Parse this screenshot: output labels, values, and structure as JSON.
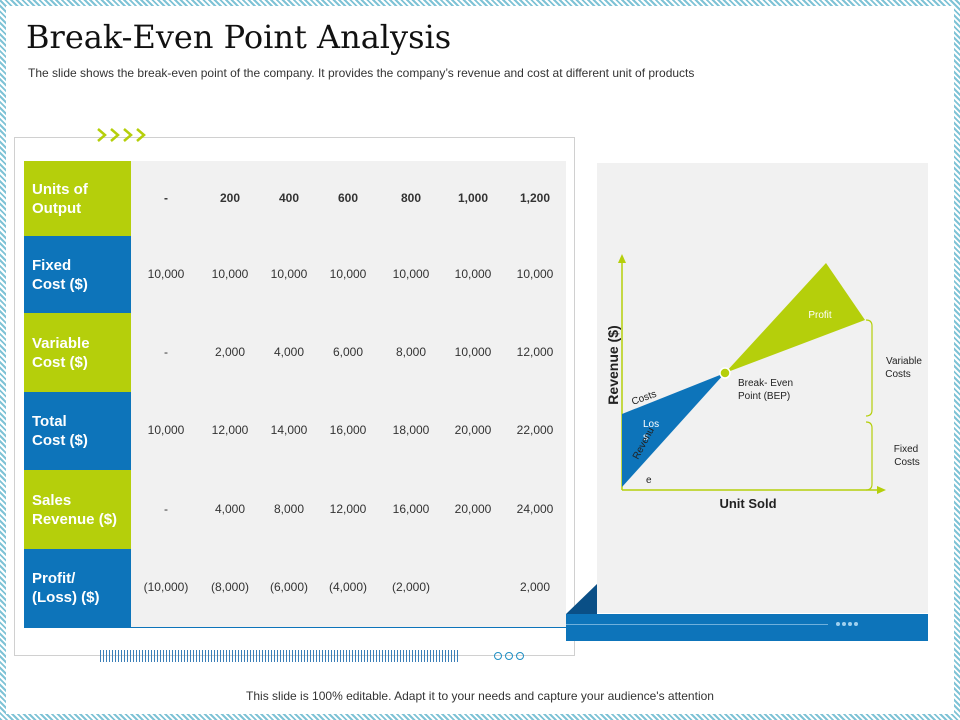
{
  "title": "Break-Even Point Analysis",
  "subtitle": "The slide shows the break-even  point of the company. It provides  the company’s revenue  and cost at different  unit of products",
  "footer": "This slide is 100% editable. Adapt it to your needs and capture your audience's attention",
  "colors": {
    "green": "#b5cf0b",
    "blue": "#0d74ba",
    "panel": "#f1f1f1"
  },
  "icons": {
    "chevrons": "chevron-right-icon",
    "circles": "circle-outline-icon"
  },
  "table": {
    "rows": [
      {
        "label_line1": "Units of",
        "label_line2": "Output",
        "color": "green",
        "bold": true,
        "values": [
          "-",
          "200",
          "400",
          "600",
          "800",
          "1,000",
          "1,200"
        ]
      },
      {
        "label_line1": "Fixed",
        "label_line2": "Cost ($)",
        "color": "blue",
        "bold": false,
        "values": [
          "10,000",
          "10,000",
          "10,000",
          "10,000",
          "10,000",
          "10,000",
          "10,000"
        ]
      },
      {
        "label_line1": "Variable",
        "label_line2": "Cost ($)",
        "color": "green",
        "bold": false,
        "values": [
          "-",
          "2,000",
          "4,000",
          "6,000",
          "8,000",
          "10,000",
          "12,000"
        ]
      },
      {
        "label_line1": "Total",
        "label_line2": "Cost ($)",
        "color": "blue",
        "bold": false,
        "values": [
          "10,000",
          "12,000",
          "14,000",
          "16,000",
          "18,000",
          "20,000",
          "22,000"
        ]
      },
      {
        "label_line1": "Sales",
        "label_line2": "Revenue ($)",
        "color": "green",
        "bold": false,
        "values": [
          "-",
          "4,000",
          "8,000",
          "12,000",
          "16,000",
          "20,000",
          "24,000"
        ]
      },
      {
        "label_line1": "Profit/",
        "label_line2": "(Loss) ($)",
        "color": "blue",
        "bold": false,
        "values": [
          "(10,000)",
          "(8,000)",
          "(6,000)",
          "(4,000)",
          "(2,000)",
          "",
          "2,000"
        ]
      }
    ]
  },
  "diagram": {
    "y_axis_label": "Revenue ($)",
    "x_axis_label": "Unit Sold",
    "profit_label": "Profit",
    "loss_label_line1": "Los",
    "loss_label_line2": "s",
    "costs_label": "Costs",
    "revenue_label_line1": "Revenu",
    "revenue_label_line2": "e",
    "bep_label_line1": "Break- Even",
    "bep_label_line2": "Point (BEP)",
    "variable_costs_line1": "Variable",
    "variable_costs_line2": "Costs",
    "fixed_costs_line1": "Fixed",
    "fixed_costs_line2": "Costs"
  }
}
